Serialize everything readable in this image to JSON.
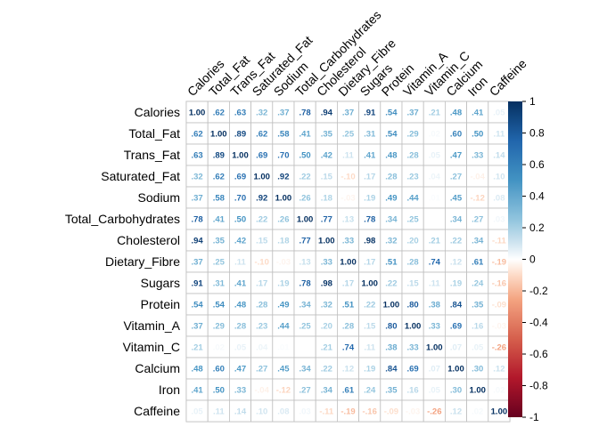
{
  "chart_data": {
    "type": "heatmap",
    "variables": [
      "Calories",
      "Total_Fat",
      "Trans_Fat",
      "Saturated_Fat",
      "Sodium",
      "Total_Carbohydrates",
      "Cholesterol",
      "Dietary_Fibre",
      "Sugars",
      "Protein",
      "Vitamin_A",
      "Vitamin_C",
      "Calcium",
      "Iron",
      "Caffeine"
    ],
    "matrix": [
      [
        1.0,
        0.62,
        0.63,
        0.32,
        0.37,
        0.78,
        0.94,
        0.37,
        0.91,
        0.54,
        0.37,
        0.21,
        0.48,
        0.41,
        0.05
      ],
      [
        0.62,
        1.0,
        0.89,
        0.62,
        0.58,
        0.41,
        0.35,
        0.25,
        0.31,
        0.54,
        0.29,
        0.02,
        0.6,
        0.5,
        0.11
      ],
      [
        0.63,
        0.89,
        1.0,
        0.69,
        0.7,
        0.5,
        0.42,
        0.11,
        0.41,
        0.48,
        0.28,
        0.05,
        0.47,
        0.33,
        0.14
      ],
      [
        0.32,
        0.62,
        0.69,
        1.0,
        0.92,
        0.22,
        0.15,
        -0.1,
        0.17,
        0.28,
        0.23,
        0.04,
        0.27,
        -0.04,
        0.1
      ],
      [
        0.37,
        0.58,
        0.7,
        0.92,
        1.0,
        0.26,
        0.18,
        -0.03,
        0.19,
        0.49,
        0.44,
        0.01,
        0.45,
        -0.12,
        0.08
      ],
      [
        0.78,
        0.41,
        0.5,
        0.22,
        0.26,
        1.0,
        0.77,
        0.13,
        0.78,
        0.34,
        0.25,
        0.0,
        0.34,
        0.27,
        0.03
      ],
      [
        0.94,
        0.35,
        0.42,
        0.15,
        0.18,
        0.77,
        1.0,
        0.33,
        0.98,
        0.32,
        0.2,
        0.21,
        0.22,
        0.34,
        -0.11
      ],
      [
        0.37,
        0.25,
        0.11,
        -0.1,
        -0.03,
        0.13,
        0.33,
        1.0,
        0.17,
        0.51,
        0.28,
        0.74,
        0.12,
        0.61,
        -0.19
      ],
      [
        0.91,
        0.31,
        0.41,
        0.17,
        0.19,
        0.78,
        0.98,
        0.17,
        1.0,
        0.22,
        0.15,
        0.11,
        0.19,
        0.24,
        -0.16
      ],
      [
        0.54,
        0.54,
        0.48,
        0.28,
        0.49,
        0.34,
        0.32,
        0.51,
        0.22,
        1.0,
        0.8,
        0.38,
        0.84,
        0.35,
        -0.09
      ],
      [
        0.37,
        0.29,
        0.28,
        0.23,
        0.44,
        0.25,
        0.2,
        0.28,
        0.15,
        0.8,
        1.0,
        0.33,
        0.69,
        0.16,
        -0.03
      ],
      [
        0.21,
        0.02,
        0.05,
        0.04,
        0.01,
        0.0,
        0.21,
        0.74,
        0.11,
        0.38,
        0.33,
        1.0,
        0.07,
        0.05,
        -0.26
      ],
      [
        0.48,
        0.6,
        0.47,
        0.27,
        0.45,
        0.34,
        0.22,
        0.12,
        0.19,
        0.84,
        0.69,
        0.07,
        1.0,
        0.3,
        0.12
      ],
      [
        0.41,
        0.5,
        0.33,
        -0.04,
        -0.12,
        0.27,
        0.34,
        0.61,
        0.24,
        0.35,
        0.16,
        0.05,
        0.3,
        1.0,
        0.02
      ],
      [
        0.05,
        0.11,
        0.14,
        0.1,
        0.08,
        0.03,
        -0.11,
        -0.19,
        -0.16,
        -0.09,
        -0.03,
        -0.26,
        0.12,
        0.02,
        1.0
      ]
    ],
    "color_range": [
      -1,
      1
    ],
    "colorbar_ticks": [
      "1",
      "0.8",
      "0.6",
      "0.4",
      "0.2",
      "0",
      "-0.2",
      "-0.4",
      "-0.6",
      "-0.8",
      "-1"
    ],
    "colorbar_tick_values": [
      1,
      0.8,
      0.6,
      0.4,
      0.2,
      0,
      -0.2,
      -0.4,
      -0.6,
      -0.8,
      -1
    ],
    "legend_position": "right",
    "colors": {
      "positive": "#053061",
      "negative": "#67001f",
      "neutral": "#ffffff",
      "grid": "#bfbfbf"
    }
  }
}
